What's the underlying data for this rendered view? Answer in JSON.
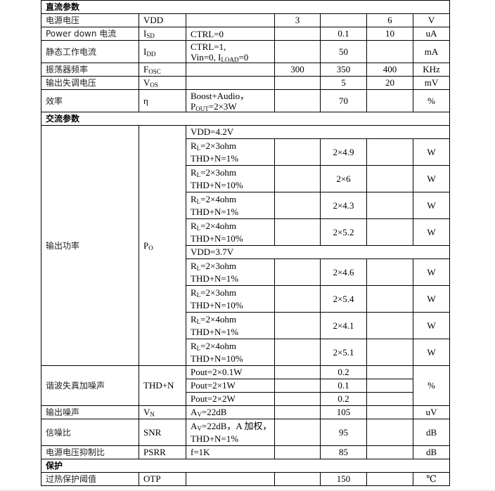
{
  "sections": {
    "dc": "直流参数",
    "ac": "交流参数",
    "protect": "保护"
  },
  "dc_rows": [
    {
      "name": "电源电压",
      "sym": "VDD",
      "cond": "",
      "min": "3",
      "typ": "",
      "max": "6",
      "unit": "V"
    },
    {
      "name": "Power down  电流",
      "sym": "I",
      "sym_sub": "SD",
      "cond": "CTRL=0",
      "min": "",
      "typ": "0.1",
      "max": "10",
      "unit": "uA"
    },
    {
      "name": "静态工作电流",
      "sym": "I",
      "sym_sub": "DD",
      "cond1": "CTRL=1,",
      "cond2a": "Vin=0, I",
      "cond2sub": "LOAD",
      "cond2b": "=0",
      "min": "",
      "typ": "50",
      "max": "",
      "unit": "mA"
    },
    {
      "name": "振荡器频率",
      "sym": "F",
      "sym_sub": "OSC",
      "cond": "",
      "min": "300",
      "typ": "350",
      "max": "400",
      "unit": "KHz"
    },
    {
      "name": "输出失调电压",
      "sym": "V",
      "sym_sub": "OS",
      "cond": "",
      "min": "",
      "typ": "5",
      "max": "20",
      "unit": "mV"
    },
    {
      "name": "效率",
      "sym": "η",
      "cond1": "Boost+Audio，",
      "cond2a": "P",
      "cond2sub": "OUT",
      "cond2b": "=2×3W",
      "min": "",
      "typ": "70",
      "max": "",
      "unit": "%"
    }
  ],
  "power": {
    "name": "输出功率",
    "sym": "P",
    "sym_sub": "O",
    "groups": [
      {
        "vdd": "VDD=4.2V",
        "rows": [
          {
            "rl": "=2×3ohm",
            "thd": "THD+N=1%",
            "typ": "2×4.9",
            "unit": "W"
          },
          {
            "rl": "=2×3ohm",
            "thd": "THD+N=10%",
            "typ": "2×6",
            "unit": "W"
          },
          {
            "rl": "=2×4ohm",
            "thd": "THD+N=1%",
            "typ": "2×4.3",
            "unit": "W"
          },
          {
            "rl": "=2×4ohm",
            "thd": "THD+N=10%",
            "typ": "2×5.2",
            "unit": "W"
          }
        ]
      },
      {
        "vdd": "VDD=3.7V",
        "rows": [
          {
            "rl": "=2×3ohm",
            "thd": "THD+N=1%",
            "typ": "2×4.6",
            "unit": "W"
          },
          {
            "rl": "=2×3ohm",
            "thd": "THD+N=10%",
            "typ": "2×5.4",
            "unit": "W"
          },
          {
            "rl": "=2×4ohm",
            "thd": "THD+N=1%",
            "typ": "2×4.1",
            "unit": "W"
          },
          {
            "rl": "=2×4ohm",
            "thd": "THD+N=10%",
            "typ": "2×5.1",
            "unit": "W"
          }
        ]
      }
    ],
    "rl_prefix": "R",
    "rl_sub": "L"
  },
  "thd": {
    "name": "谐波失真加噪声",
    "sym": "THD+N",
    "unit": "%",
    "rows": [
      {
        "cond": "Pout=2×0.1W",
        "typ": "0.2"
      },
      {
        "cond": "Pout=2×1W",
        "typ": "0.1"
      },
      {
        "cond": "Pout=2×2W",
        "typ": "0.2"
      }
    ]
  },
  "noise": {
    "name": "输出噪声",
    "sym": "V",
    "sym_sub": "N",
    "cond_a": "A",
    "cond_sub": "V",
    "cond_b": "=22dB",
    "typ": "105",
    "unit": "uV"
  },
  "snr": {
    "name": "信噪比",
    "sym": "SNR",
    "cond_a": "A",
    "cond_sub": "V",
    "cond_b": "=22dB，A 加权，",
    "cond2": "THD+N=1%",
    "typ": "95",
    "unit": "dB"
  },
  "psrr": {
    "name": "电源电压抑制比",
    "sym": "PSRR",
    "cond": "f=1K",
    "typ": "85",
    "unit": "dB"
  },
  "otp": {
    "name": "过热保护阈值",
    "sym": "OTP",
    "typ": "150",
    "unit": "℃"
  }
}
